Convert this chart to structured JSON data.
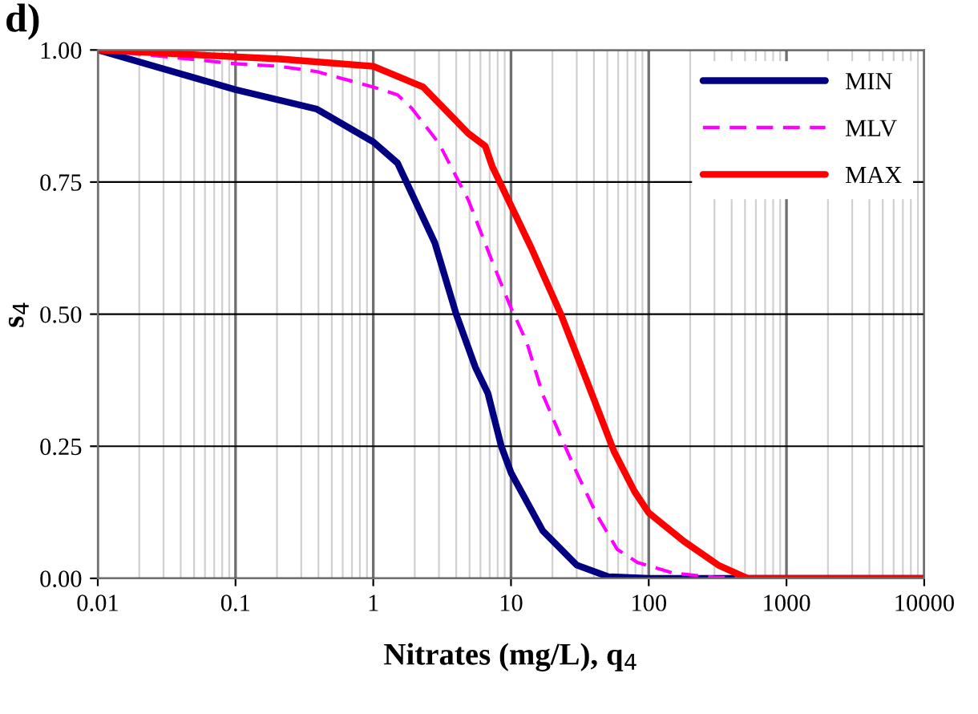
{
  "chart_data": {
    "type": "line",
    "xlabel": "Nitrates (mg/L), q$_{4}$",
    "ylabel": "s$_{4}$",
    "annotations": [
      "d)"
    ],
    "log": "x",
    "xlim": [
      0.01,
      10000
    ],
    "xticks": [
      {
        "value": 0.01,
        "label": "0.01"
      },
      {
        "value": 0.1,
        "label": "0.1"
      },
      1,
      10,
      100,
      1000,
      10000
    ],
    "ylim": [
      0,
      1
    ],
    "yticks": [
      {
        "value": 0,
        "label": "0.00"
      },
      {
        "value": 0.25,
        "label": "0.25"
      },
      {
        "value": 0.5,
        "label": "0.50"
      },
      {
        "value": 0.75,
        "label": "0.75"
      },
      {
        "value": 1,
        "label": "1.00"
      }
    ],
    "grid": true,
    "legend": "top right",
    "marker": "none",
    "series": [
      {
        "name": "MIN",
        "color": "#000080",
        "line_style": "solid",
        "x": [
          0.01,
          0.1,
          0.39,
          1,
          1.5,
          2.8,
          4,
          5.5,
          6.8,
          8.5,
          10,
          17,
          30,
          51,
          100,
          10000
        ],
        "values": [
          1,
          0.925,
          0.888,
          0.826,
          0.786,
          0.635,
          0.5,
          0.4,
          0.35,
          0.25,
          0.2,
          0.09,
          0.025,
          0.003,
          0,
          0
        ]
      },
      {
        "name": "MLV",
        "color": "#ff00ff",
        "line_style": "dashed",
        "x": [
          0.01,
          0.1,
          0.21,
          0.39,
          1,
          1.5,
          1.9,
          3,
          4.9,
          7.3,
          9.8,
          13,
          17,
          23,
          30,
          42,
          59,
          83,
          150,
          300,
          520,
          10000
        ],
        "values": [
          1,
          0.974,
          0.969,
          0.959,
          0.93,
          0.915,
          0.89,
          0.823,
          0.716,
          0.6,
          0.517,
          0.447,
          0.348,
          0.268,
          0.2,
          0.12,
          0.055,
          0.03,
          0.01,
          0.002,
          0,
          0
        ]
      },
      {
        "name": "MAX",
        "color": "#ff0000",
        "line_style": "solid",
        "x": [
          0.01,
          0.21,
          1,
          2.3,
          4.9,
          6.5,
          7.3,
          14,
          23,
          35,
          56,
          79,
          100,
          180,
          320,
          520,
          10000
        ],
        "values": [
          1,
          0.983,
          0.969,
          0.93,
          0.842,
          0.818,
          0.78,
          0.626,
          0.5,
          0.378,
          0.24,
          0.164,
          0.124,
          0.07,
          0.025,
          0,
          0
        ]
      }
    ]
  }
}
